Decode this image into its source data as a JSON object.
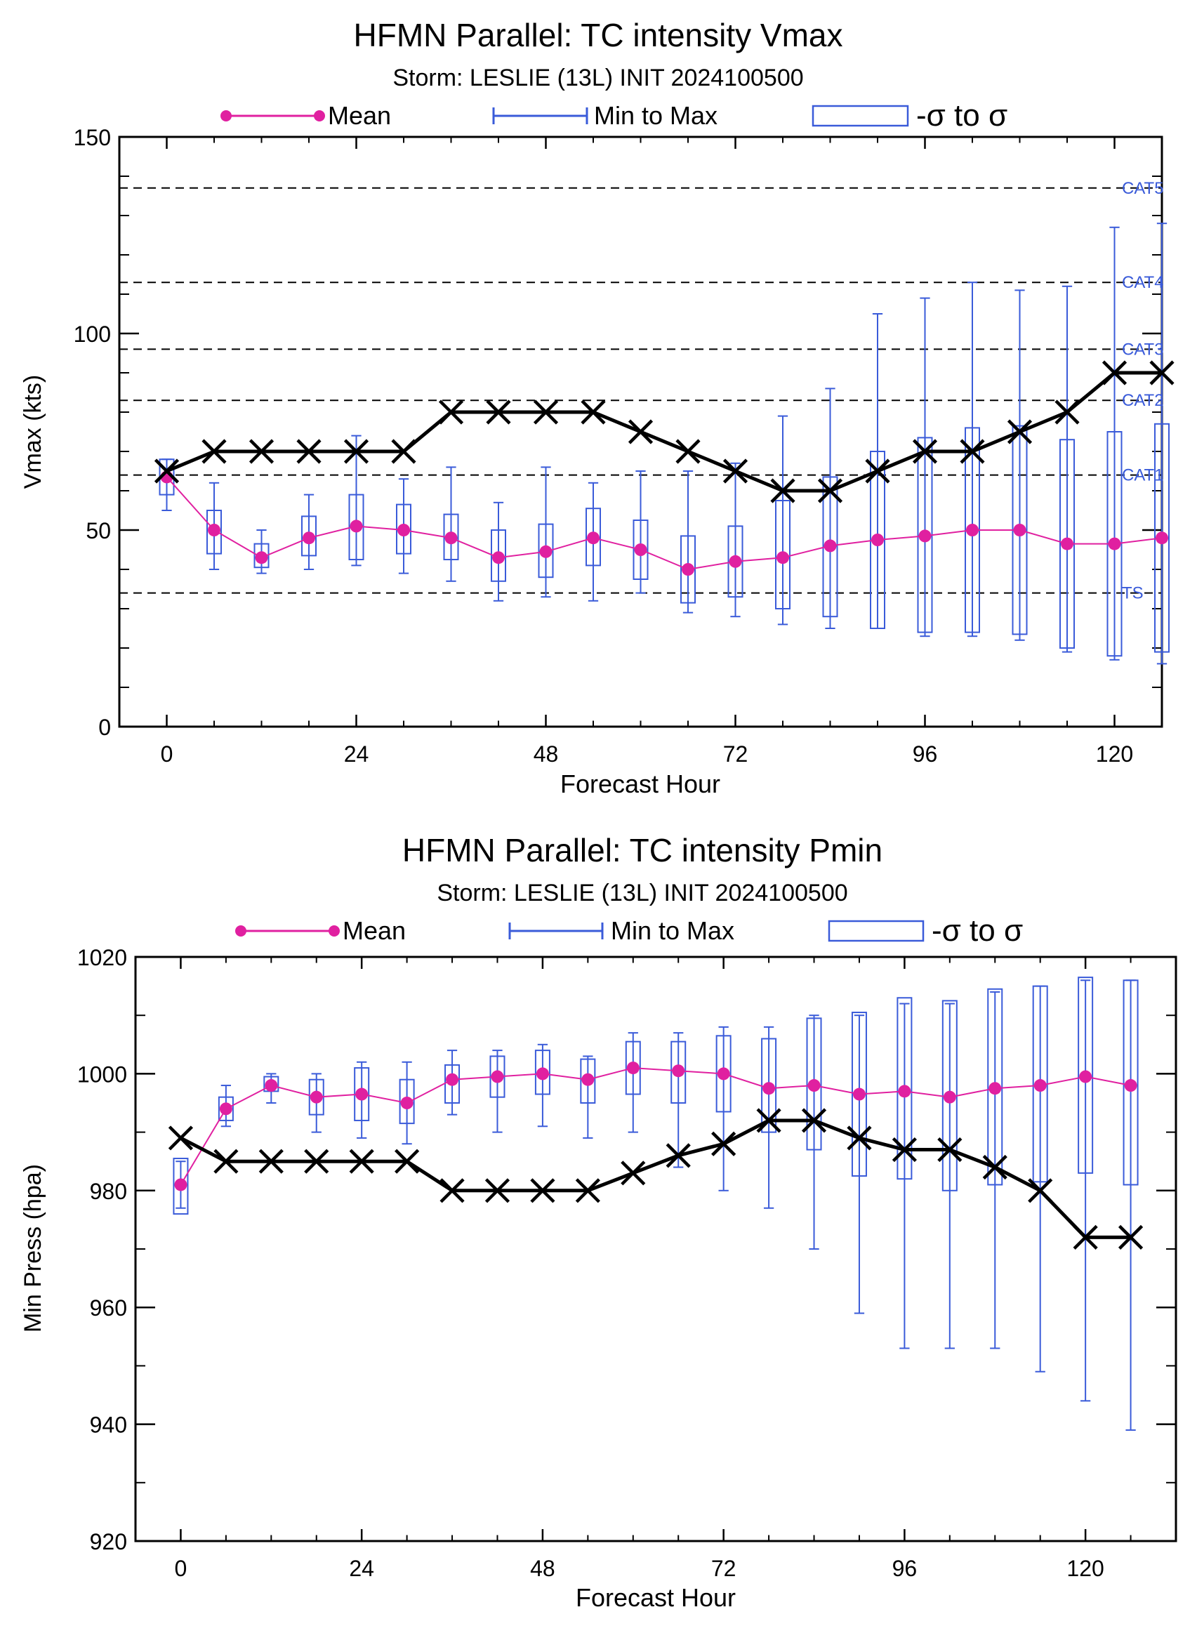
{
  "colors": {
    "mean": "#e020a0",
    "spread": "#3a5bd9",
    "obs": "#000000"
  },
  "chart_data": [
    {
      "type": "line",
      "title": "HFMN Parallel: TC intensity Vmax",
      "subtitle": "Storm: LESLIE (13L) INIT 2024100500",
      "xlabel": "Forecast Hour",
      "ylabel": "Vmax (kts)",
      "xlim": [
        -6,
        126
      ],
      "ylim": [
        0,
        150
      ],
      "xticks": [
        "0",
        "24",
        "48",
        "72",
        "96",
        "120"
      ],
      "yticks": [
        "0",
        "50",
        "100",
        "150"
      ],
      "legend": [
        "Mean",
        "Min to Max",
        "-σ to σ"
      ],
      "grid": false,
      "ref_lines": [
        {
          "label": "TS",
          "value": 34
        },
        {
          "label": "CAT1",
          "value": 64
        },
        {
          "label": "CAT2",
          "value": 83
        },
        {
          "label": "CAT3",
          "value": 96
        },
        {
          "label": "CAT4",
          "value": 113
        },
        {
          "label": "CAT5",
          "value": 137
        }
      ],
      "x": [
        0,
        6,
        12,
        18,
        24,
        30,
        36,
        42,
        48,
        54,
        60,
        66,
        72,
        78,
        84,
        90,
        96,
        102,
        108,
        114,
        120,
        126
      ],
      "series": [
        {
          "name": "Mean",
          "values": [
            63.5,
            50,
            43,
            48,
            51,
            50,
            48,
            43,
            44.5,
            48,
            45,
            40,
            42,
            43,
            46,
            47.5,
            48.5,
            50,
            50,
            46.5,
            46.5,
            48
          ]
        },
        {
          "name": "Min",
          "values": [
            55,
            40,
            39,
            40,
            41,
            39,
            37,
            32,
            33,
            32,
            34,
            29,
            28,
            26,
            25,
            25,
            23,
            23,
            22,
            19,
            17,
            16
          ]
        },
        {
          "name": "Max",
          "values": [
            68,
            62,
            50,
            59,
            74,
            63,
            66,
            57,
            66,
            62,
            65,
            65,
            67,
            79,
            86,
            105,
            109,
            113,
            111,
            112,
            127,
            128
          ]
        },
        {
          "name": "-σ",
          "values": [
            59,
            44,
            40.5,
            43.5,
            42.5,
            44,
            42.5,
            37,
            38,
            41,
            37.5,
            31.5,
            33,
            30,
            28,
            25,
            24,
            24,
            23.5,
            20,
            18,
            19
          ]
        },
        {
          "name": "σ",
          "values": [
            68,
            55,
            46.5,
            53.5,
            59,
            56.5,
            54,
            50,
            51.5,
            55.5,
            52.5,
            48.5,
            51,
            57.5,
            63.5,
            70,
            73.5,
            76,
            76.5,
            73,
            75,
            77
          ]
        },
        {
          "name": "Observed",
          "x": [
            0,
            6,
            12,
            18,
            24,
            30,
            36,
            42,
            48,
            54,
            60,
            66,
            72,
            78,
            84,
            90,
            96,
            102,
            108,
            114,
            120,
            126
          ],
          "values": [
            65,
            70,
            70,
            70,
            70,
            70,
            80,
            80,
            80,
            80,
            75,
            70,
            65,
            60,
            60,
            65,
            70,
            70,
            75,
            80,
            90,
            90
          ]
        }
      ]
    },
    {
      "type": "line",
      "title": "HFMN Parallel: TC intensity Pmin",
      "subtitle": "Storm: LESLIE (13L) INIT 2024100500",
      "xlabel": "Forecast Hour",
      "ylabel": "Min Press (hpa)",
      "xlim": [
        -6,
        132
      ],
      "ylim": [
        920,
        1020
      ],
      "xticks": [
        "0",
        "24",
        "48",
        "72",
        "96",
        "120"
      ],
      "yticks": [
        "920",
        "940",
        "960",
        "980",
        "1000",
        "1020"
      ],
      "legend": [
        "Mean",
        "Min to Max",
        "-σ to σ"
      ],
      "grid": false,
      "x": [
        0,
        6,
        12,
        18,
        24,
        30,
        36,
        42,
        48,
        54,
        60,
        66,
        72,
        78,
        84,
        90,
        96,
        102,
        108,
        114,
        120,
        126
      ],
      "series": [
        {
          "name": "Mean",
          "values": [
            981,
            994,
            998,
            996,
            996.5,
            995,
            999,
            999.5,
            1000,
            999,
            1001,
            1000.5,
            1000,
            997.5,
            998,
            996.5,
            997,
            996,
            997.5,
            998,
            999.5,
            998
          ]
        },
        {
          "name": "Min",
          "values": [
            977,
            991,
            995,
            990,
            989,
            988,
            993,
            990,
            991,
            989,
            990,
            984,
            980,
            977,
            970,
            959,
            953,
            953,
            953,
            949,
            944,
            939
          ]
        },
        {
          "name": "Max",
          "values": [
            985,
            998,
            1000,
            1000,
            1002,
            1002,
            1004,
            1004,
            1005,
            1003,
            1007,
            1007,
            1008,
            1008,
            1010,
            1010,
            1012,
            1012,
            1014,
            1015,
            1016,
            1016
          ]
        },
        {
          "name": "-σ",
          "values": [
            976,
            992,
            997,
            993,
            992,
            991.5,
            995,
            996,
            996.5,
            995,
            996.5,
            995,
            993.5,
            990,
            987,
            982.5,
            982,
            980,
            981,
            981.5,
            983,
            981
          ]
        },
        {
          "name": "σ",
          "values": [
            985.5,
            996,
            999.5,
            999,
            1001,
            999,
            1001.5,
            1003,
            1004,
            1002.5,
            1005.5,
            1005.5,
            1006.5,
            1006,
            1009.5,
            1010.5,
            1013,
            1012.5,
            1014.5,
            1015,
            1016.5,
            1016
          ]
        },
        {
          "name": "Observed",
          "x": [
            0,
            6,
            12,
            18,
            24,
            30,
            36,
            42,
            48,
            54,
            60,
            66,
            72,
            78,
            84,
            90,
            96,
            102,
            108,
            114,
            120,
            126
          ],
          "values": [
            989,
            985,
            985,
            985,
            985,
            985,
            980,
            980,
            980,
            980,
            983,
            986,
            988,
            992,
            992,
            989,
            987,
            987,
            984,
            980,
            972,
            972
          ]
        }
      ]
    }
  ]
}
